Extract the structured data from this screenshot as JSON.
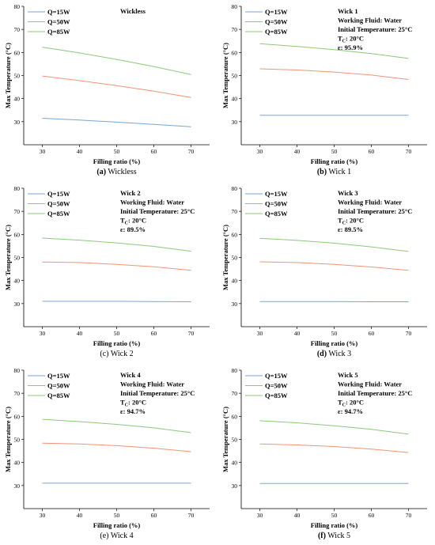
{
  "colors": {
    "q15": "#7aa6d6",
    "q50": "#f29477",
    "q85": "#8cc97a",
    "axis": "#000000"
  },
  "chart_data": [
    {
      "type": "line",
      "caption": {
        "letter": "(a)",
        "text": "Wickless"
      },
      "annotations": [
        "Wickless"
      ],
      "xlabel": "Filling ratio (%)",
      "ylabel": "Max Temperature (°C)",
      "xlim": [
        25,
        75
      ],
      "ylim": [
        20,
        80
      ],
      "xticks": [
        30,
        40,
        50,
        60,
        70
      ],
      "yticks": [
        30,
        40,
        50,
        60,
        70,
        80
      ],
      "x": [
        30,
        40,
        50,
        60,
        70
      ],
      "series": [
        {
          "name": "Q=15W",
          "color": "#7aa6d6",
          "values": [
            31.5,
            30.7,
            29.8,
            28.8,
            27.8
          ]
        },
        {
          "name": "Q=50W",
          "color": "#f29477",
          "values": [
            49.8,
            47.8,
            45.6,
            43.2,
            40.5
          ]
        },
        {
          "name": "Q=85W",
          "color": "#8cc97a",
          "values": [
            62.3,
            59.8,
            57.0,
            53.9,
            50.4
          ]
        }
      ]
    },
    {
      "type": "line",
      "caption": {
        "letter": "(b)",
        "text": "Wick 1"
      },
      "annotations": [
        "Wick 1",
        "Working Fluid: Water",
        "Initial Temperature: 25°C",
        "T_C: 20°C",
        "ε: 95.9%"
      ],
      "xlabel": "Filling ratio (%)",
      "ylabel": "Max Temperature (°C)",
      "xlim": [
        25,
        75
      ],
      "ylim": [
        20,
        80
      ],
      "xticks": [
        30,
        40,
        50,
        60,
        70
      ],
      "yticks": [
        30,
        40,
        50,
        60,
        70,
        80
      ],
      "x": [
        30,
        40,
        50,
        60,
        70
      ],
      "series": [
        {
          "name": "Q=15W",
          "color": "#7aa6d6",
          "values": [
            32.8,
            32.8,
            32.8,
            32.8,
            32.8
          ]
        },
        {
          "name": "Q=50W",
          "color": "#f29477",
          "values": [
            52.9,
            52.4,
            51.5,
            50.2,
            48.3
          ]
        },
        {
          "name": "Q=85W",
          "color": "#8cc97a",
          "values": [
            63.8,
            62.6,
            61.2,
            59.5,
            57.4
          ]
        }
      ]
    },
    {
      "type": "line",
      "caption": {
        "letter": "(c)",
        "text": "Wick 2"
      },
      "annotations": [
        "Wick 2",
        "Working Fluid: Water",
        "Initial Temperature: 25°C",
        "T_C: 20°C",
        "ε: 89.5%"
      ],
      "xlabel": "Filling ratio (%)",
      "ylabel": "Max Temperature (°C)",
      "xlim": [
        25,
        75
      ],
      "ylim": [
        20,
        80
      ],
      "xticks": [
        30,
        40,
        50,
        60,
        70
      ],
      "yticks": [
        30,
        40,
        50,
        60,
        70,
        80
      ],
      "x": [
        30,
        40,
        50,
        60,
        70
      ],
      "series": [
        {
          "name": "Q=15W",
          "color": "#7aa6d6",
          "values": [
            31.0,
            31.0,
            31.0,
            30.9,
            30.8
          ]
        },
        {
          "name": "Q=50W",
          "color": "#f29477",
          "values": [
            48.0,
            47.8,
            47.0,
            46.0,
            44.4
          ]
        },
        {
          "name": "Q=85W",
          "color": "#8cc97a",
          "values": [
            58.4,
            57.5,
            56.3,
            54.8,
            52.7
          ]
        }
      ]
    },
    {
      "type": "line",
      "caption": {
        "letter": "(d)",
        "text": "Wick 3"
      },
      "annotations": [
        "Wick 3",
        "Working Fluid: Water",
        "Initial Temperature: 25°C",
        "T_C: 20°C",
        "ε: 89.5%"
      ],
      "xlabel": "Filling ratio (%)",
      "ylabel": "Max Temperature (°C)",
      "xlim": [
        25,
        75
      ],
      "ylim": [
        20,
        80
      ],
      "xticks": [
        30,
        40,
        50,
        60,
        70
      ],
      "yticks": [
        30,
        40,
        50,
        60,
        70,
        80
      ],
      "x": [
        30,
        40,
        50,
        60,
        70
      ],
      "series": [
        {
          "name": "Q=15W",
          "color": "#7aa6d6",
          "values": [
            30.9,
            30.9,
            30.9,
            30.8,
            30.8
          ]
        },
        {
          "name": "Q=50W",
          "color": "#f29477",
          "values": [
            48.1,
            47.8,
            47.0,
            45.9,
            44.4
          ]
        },
        {
          "name": "Q=85W",
          "color": "#8cc97a",
          "values": [
            58.3,
            57.4,
            56.2,
            54.6,
            52.6
          ]
        }
      ]
    },
    {
      "type": "line",
      "caption": {
        "letter": "(e)",
        "text": "Wick 4"
      },
      "annotations": [
        "Wick 4",
        "Working Fluid: Water",
        "Initial Temperature: 25°C",
        "T_C: 20°C",
        "ε: 94.7%"
      ],
      "xlabel": "Filling ratio (%)",
      "ylabel": "Max Temperature (°C)",
      "xlim": [
        25,
        75
      ],
      "ylim": [
        20,
        80
      ],
      "xticks": [
        30,
        40,
        50,
        60,
        70
      ],
      "yticks": [
        30,
        40,
        50,
        60,
        70,
        80
      ],
      "x": [
        30,
        40,
        50,
        60,
        70
      ],
      "series": [
        {
          "name": "Q=15W",
          "color": "#7aa6d6",
          "values": [
            31.0,
            31.0,
            31.0,
            31.0,
            31.0
          ]
        },
        {
          "name": "Q=50W",
          "color": "#f29477",
          "values": [
            48.4,
            48.0,
            47.3,
            46.2,
            44.7
          ]
        },
        {
          "name": "Q=85W",
          "color": "#8cc97a",
          "values": [
            58.7,
            57.7,
            56.5,
            55.0,
            52.9
          ]
        }
      ]
    },
    {
      "type": "line",
      "caption": {
        "letter": "(f)",
        "text": "Wick 5"
      },
      "annotations": [
        "Wick 5",
        "Working Fluid: Water",
        "Initial Temperature: 25°C",
        "T_C: 20°C",
        "ε: 94.7%"
      ],
      "xlabel": "Filling ratio (%)",
      "ylabel": "Max Temperature (°C)",
      "xlim": [
        25,
        75
      ],
      "ylim": [
        20,
        80
      ],
      "xticks": [
        30,
        40,
        50,
        60,
        70
      ],
      "yticks": [
        30,
        40,
        50,
        60,
        70,
        80
      ],
      "x": [
        30,
        40,
        50,
        60,
        70
      ],
      "series": [
        {
          "name": "Q=15W",
          "color": "#7aa6d6",
          "values": [
            30.9,
            30.9,
            30.9,
            30.9,
            30.9
          ]
        },
        {
          "name": "Q=50W",
          "color": "#f29477",
          "values": [
            48.0,
            47.6,
            46.9,
            45.8,
            44.3
          ]
        },
        {
          "name": "Q=85W",
          "color": "#8cc97a",
          "values": [
            58.1,
            57.2,
            55.9,
            54.4,
            52.3
          ]
        }
      ]
    }
  ]
}
